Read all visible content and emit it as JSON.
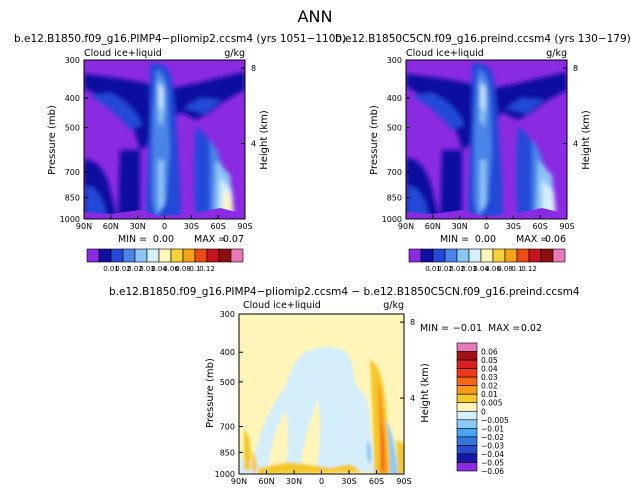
{
  "title": "ANN",
  "panels": [
    {
      "title": "b.e12.B1850.f09_g16.PIMP4−pliomip2.ccsm4  (yrs 1051−1100)",
      "variable": "Cloud  ice+liquid",
      "units": "g/kg",
      "min_label": "MIN =",
      "min_value": "0.00",
      "max_label": "MAX =",
      "max_value": "0.07"
    },
    {
      "title": "b.e12.B1850C5CN.f09_g16.preind.ccsm4  (yrs 130−179)",
      "variable": "Cloud  ice+liquid",
      "units": "g/kg",
      "min_label": "MIN =",
      "min_value": "0.00",
      "max_label": "MAX =",
      "max_value": "0.06"
    },
    {
      "title": "b.e12.B1850.f09_g16.PIMP4−pliomip2.ccsm4  −  b.e12.B1850C5CN.f09_g16.preind.ccsm4",
      "variable": "Cloud  ice+liquid",
      "units": "g/kg",
      "min_label": "MIN =",
      "min_value": "−0.01",
      "max_label": "MAX =",
      "max_value": "0.02"
    }
  ],
  "axes": {
    "ylabel": "Pressure  (mb)",
    "ylabel2": "Height  (km)",
    "x_ticks": [
      "90N",
      "60N",
      "30N",
      "0",
      "30S",
      "60S",
      "90S"
    ],
    "y_ticks": [
      "300",
      "400",
      "500",
      "700",
      "850",
      "1000"
    ],
    "y2_ticks": [
      "8",
      "4"
    ]
  },
  "colorbar_top": {
    "labels": [
      "0.01",
      "0.02",
      "0.02",
      "0.03",
      "0.04",
      "0.06",
      "0.08",
      "0.1",
      "0.12"
    ],
    "colors": [
      "#8a2be2",
      "#1010a0",
      "#2448d8",
      "#4a84e8",
      "#8cc4f4",
      "#d4eefa",
      "#fff5b8",
      "#f5d23a",
      "#f5a21a",
      "#ea4a14",
      "#c4141e",
      "#8c1010",
      "#e878b8"
    ]
  },
  "colorbar_diff": {
    "labels": [
      "0.06",
      "0.05",
      "0.04",
      "0.03",
      "0.02",
      "0.01",
      "0.005",
      "0",
      "−0.005",
      "−0.01",
      "−0.02",
      "−0.03",
      "−0.04",
      "−0.05",
      "−0.06"
    ],
    "colors": [
      "#e878b8",
      "#a01418",
      "#d82020",
      "#ee3a1a",
      "#f56818",
      "#f59a1a",
      "#f5c82a",
      "#fff5b8",
      "#d4eefa",
      "#8ccaf4",
      "#4aa4ee",
      "#3276de",
      "#2a4acc",
      "#1818a8",
      "#8a2be2"
    ]
  },
  "chart_data": [
    {
      "type": "heatmap",
      "title": "b.e12.B1850.f09_g16.PIMP4−pliomip2.ccsm4  (yrs 1051−1100)",
      "variable": "Cloud ice+liquid",
      "units": "g/kg",
      "x_range": [
        90,
        -90
      ],
      "x_ticks": [
        "90N",
        "60N",
        "30N",
        "0",
        "30S",
        "60S",
        "90S"
      ],
      "y_range": [
        300,
        1000
      ],
      "y_ticks": [
        300,
        400,
        500,
        700,
        850,
        1000
      ],
      "min": 0.0,
      "max": 0.07,
      "levels": [
        0.01,
        0.02,
        0.02,
        0.03,
        0.04,
        0.06,
        0.08,
        0.1,
        0.12
      ]
    },
    {
      "type": "heatmap",
      "title": "b.e12.B1850C5CN.f09_g16.preind.ccsm4  (yrs 130−179)",
      "variable": "Cloud ice+liquid",
      "units": "g/kg",
      "x_range": [
        90,
        -90
      ],
      "x_ticks": [
        "90N",
        "60N",
        "30N",
        "0",
        "30S",
        "60S",
        "90S"
      ],
      "y_range": [
        300,
        1000
      ],
      "y_ticks": [
        300,
        400,
        500,
        700,
        850,
        1000
      ],
      "min": 0.0,
      "max": 0.06,
      "levels": [
        0.01,
        0.02,
        0.02,
        0.03,
        0.04,
        0.06,
        0.08,
        0.1,
        0.12
      ]
    },
    {
      "type": "heatmap",
      "title": "difference",
      "variable": "Cloud ice+liquid",
      "units": "g/kg",
      "x_range": [
        90,
        -90
      ],
      "y_range": [
        300,
        1000
      ],
      "min": -0.01,
      "max": 0.02,
      "levels": [
        -0.06,
        -0.05,
        -0.04,
        -0.03,
        -0.02,
        -0.01,
        -0.005,
        0,
        0.005,
        0.01,
        0.02,
        0.03,
        0.04,
        0.05,
        0.06
      ]
    }
  ]
}
